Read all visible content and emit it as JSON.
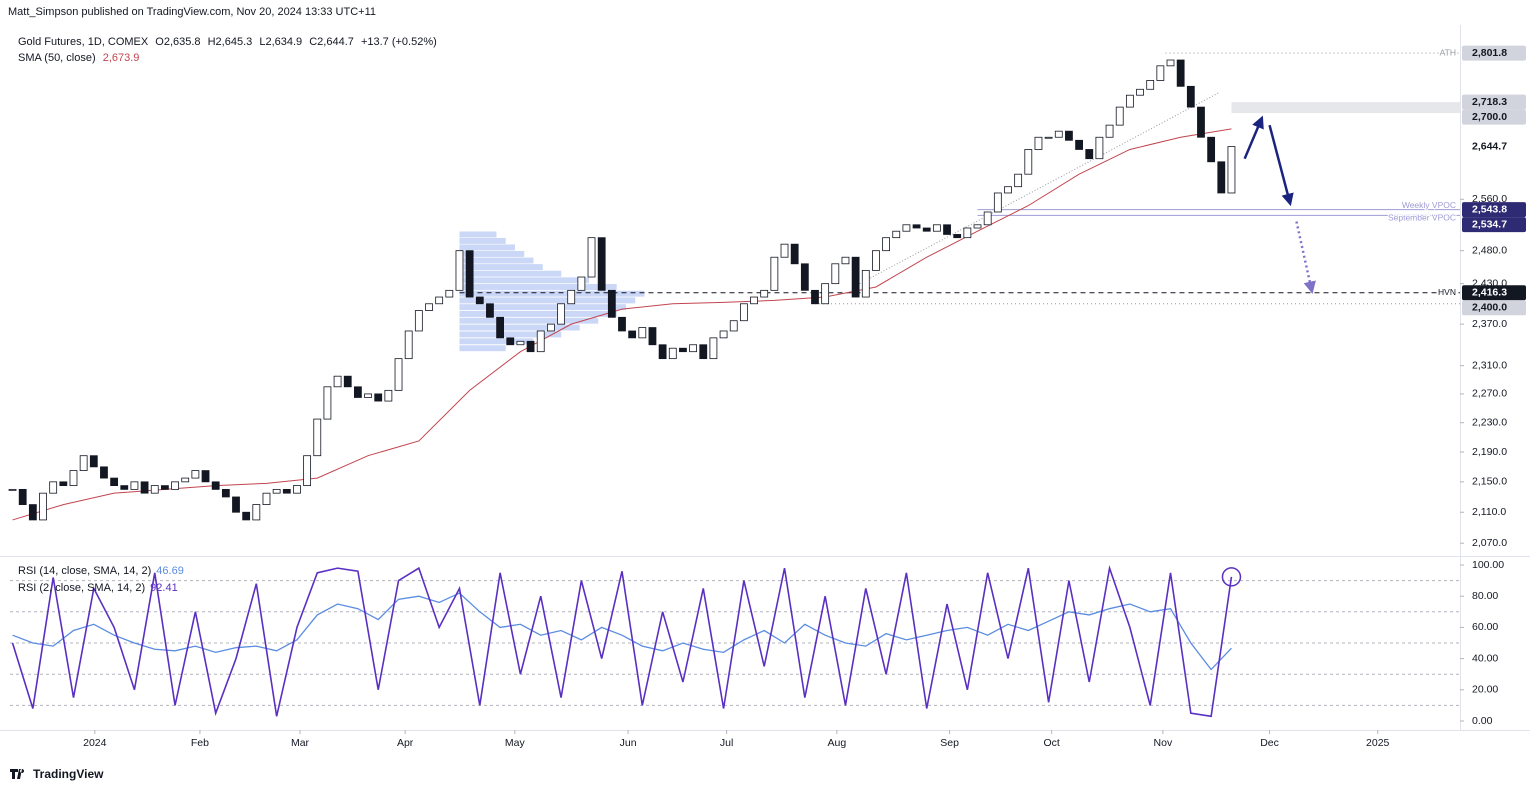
{
  "header": {
    "publisher": "Matt_Simpson published on TradingView.com, Nov 20, 2024 13:33 UTC+11",
    "symbol": "Gold Futures, 1D, COMEX",
    "quote": [
      "O2,635.8",
      "H2,645.3",
      "L2,634.9",
      "C2,644.7",
      "+13.7 (+0.52%)"
    ]
  },
  "footer": {
    "brand": "TradingView"
  },
  "chart_data": [
    {
      "type": "candlestick",
      "log_scale": true,
      "xlim": [
        -0.5,
        285
      ],
      "ylim": [
        2055,
        2851
      ],
      "yticks": [
        {
          "value": 2070,
          "label": "2,070.0"
        },
        {
          "value": 2110,
          "label": "2,110.0"
        },
        {
          "value": 2150,
          "label": "2,150.0"
        },
        {
          "value": 2190,
          "label": "2,190.0"
        },
        {
          "value": 2230,
          "label": "2,230.0"
        },
        {
          "value": 2270,
          "label": "2,270.0"
        },
        {
          "value": 2310,
          "label": "2,310.0"
        },
        {
          "value": 2370,
          "label": "2,370.0"
        },
        {
          "value": 2430,
          "label": "2,430.0"
        },
        {
          "value": 2480,
          "label": "2,480.0"
        },
        {
          "value": 2560,
          "label": "2,560.0"
        }
      ],
      "up_color": "#ffffff",
      "down_color": "#131722",
      "x": [
        0,
        2,
        4,
        6,
        8,
        10,
        12,
        14,
        16,
        18,
        20,
        22,
        24,
        26,
        28,
        30,
        32,
        34,
        36,
        38,
        40,
        42,
        44,
        46,
        48,
        50,
        52,
        54,
        56,
        58,
        60,
        62,
        64,
        66,
        68,
        70,
        72,
        74,
        76,
        78,
        80,
        82,
        84,
        86,
        88,
        90,
        92,
        94,
        96,
        98,
        100,
        102,
        104,
        106,
        108,
        110,
        112,
        114,
        116,
        118,
        120,
        122,
        124,
        126,
        128,
        130,
        132,
        134,
        136,
        138,
        140,
        142,
        144,
        146,
        148,
        150,
        152,
        154,
        156,
        158,
        160,
        162,
        164,
        166,
        168,
        170,
        172,
        174,
        176,
        178,
        180,
        182,
        184,
        186,
        188,
        190,
        192,
        194,
        196,
        198,
        200,
        202,
        204,
        206,
        208,
        210,
        212,
        214,
        216,
        218,
        220,
        222,
        224,
        226,
        228,
        230,
        232,
        234,
        236,
        238,
        240
      ],
      "close": [
        2140,
        2120,
        2100,
        2135,
        2150,
        2145,
        2165,
        2185,
        2170,
        2155,
        2145,
        2140,
        2150,
        2135,
        2145,
        2140,
        2150,
        2155,
        2165,
        2150,
        2140,
        2130,
        2110,
        2100,
        2120,
        2135,
        2140,
        2135,
        2145,
        2185,
        2235,
        2280,
        2295,
        2280,
        2265,
        2270,
        2260,
        2275,
        2320,
        2360,
        2390,
        2400,
        2410,
        2420,
        2480,
        2410,
        2400,
        2380,
        2350,
        2340,
        2345,
        2330,
        2360,
        2370,
        2400,
        2420,
        2440,
        2500,
        2420,
        2380,
        2360,
        2350,
        2365,
        2340,
        2320,
        2335,
        2330,
        2340,
        2320,
        2350,
        2360,
        2375,
        2400,
        2410,
        2420,
        2470,
        2490,
        2460,
        2420,
        2400,
        2430,
        2460,
        2470,
        2410,
        2450,
        2480,
        2500,
        2510,
        2520,
        2515,
        2510,
        2520,
        2505,
        2500,
        2515,
        2520,
        2540,
        2570,
        2580,
        2600,
        2640,
        2660,
        2660,
        2670,
        2655,
        2640,
        2625,
        2660,
        2680,
        2710,
        2730,
        2740,
        2755,
        2780,
        2790,
        2745,
        2710,
        2660,
        2620,
        2570,
        2644.7
      ],
      "sma": {
        "name": "SMA (50, close)",
        "value_label": "2,673.9",
        "color": "#c2454f",
        "x": [
          0,
          10,
          20,
          30,
          40,
          50,
          60,
          70,
          80,
          90,
          100,
          110,
          120,
          130,
          140,
          150,
          160,
          170,
          180,
          190,
          200,
          210,
          220,
          230,
          240
        ],
        "values": [
          2100,
          2120,
          2135,
          2140,
          2145,
          2148,
          2155,
          2185,
          2205,
          2275,
          2330,
          2370,
          2392,
          2400,
          2402,
          2405,
          2410,
          2425,
          2470,
          2510,
          2550,
          2600,
          2640,
          2660,
          2673.9
        ]
      },
      "volume_profile": {
        "color": "#9fb7ef",
        "x_from": 88,
        "prices": [
          2335,
          2345,
          2355,
          2365,
          2375,
          2385,
          2395,
          2405,
          2415,
          2425,
          2435,
          2445,
          2455,
          2465,
          2475,
          2485,
          2495,
          2505
        ],
        "volumes": [
          25,
          40,
          55,
          65,
          75,
          85,
          90,
          95,
          100,
          85,
          70,
          55,
          45,
          40,
          35,
          30,
          25,
          20
        ]
      },
      "zone": {
        "low": 2700,
        "high": 2718.3,
        "x_from": 240,
        "color": "#e6e7ea"
      },
      "levels": [
        {
          "value": 2801.8,
          "label": "ATH",
          "x_from": 227,
          "style": "dotted",
          "color": "#9598a1"
        },
        {
          "value": 2543.8,
          "label": "Weekly VPOC",
          "x_from": 190,
          "style": "solid",
          "color": "#9e9bd6"
        },
        {
          "value": 2534.7,
          "label": "September VPOC",
          "x_from": 190,
          "style": "solid",
          "color": "#9e9bd6"
        },
        {
          "value": 2416.3,
          "label": "HVN",
          "x_from": 88,
          "style": "dashed",
          "color": "#131722"
        },
        {
          "value": 2400,
          "x_from": 158,
          "style": "dotted",
          "color": "#9598a1"
        }
      ],
      "trendline": {
        "x": [
          166.8,
          237.7
        ],
        "y": [
          2430,
          2735
        ],
        "color": "#9598a1"
      },
      "arrows": [
        {
          "x": [
            242.6,
            245.9
          ],
          "y": [
            2625,
            2690
          ],
          "color": "#1a237e",
          "dashed": false
        },
        {
          "x": [
            247.5,
            251.5
          ],
          "y": [
            2680,
            2555
          ],
          "color": "#1a237e",
          "dashed": false
        },
        {
          "x": [
            252.8,
            255.8
          ],
          "y": [
            2525,
            2420
          ],
          "color": "#7e73c9",
          "dashed": true
        }
      ],
      "price_labels": [
        {
          "value": 2801.8,
          "label": "2,801.8",
          "bg": "#d1d4dc",
          "fg": "#131722"
        },
        {
          "value": 2718.3,
          "label": "2,718.3",
          "bg": "#d1d4dc",
          "fg": "#131722"
        },
        {
          "value": 2700,
          "label": "2,700.0",
          "bg": "#d1d4dc",
          "fg": "#131722"
        },
        {
          "value": 2644.7,
          "label": "2,644.7",
          "bg": "#ffffff",
          "fg": "#131722"
        },
        {
          "value": 2543.8,
          "label": "2,543.8",
          "bg": "#2e2a73",
          "fg": "#ffffff"
        },
        {
          "value": 2534.7,
          "label": "2,534.7",
          "bg": "#2e2a73",
          "fg": "#ffffff"
        },
        {
          "value": 2416.3,
          "label": "2,416.3",
          "bg": "#131722",
          "fg": "#ffffff"
        },
        {
          "value": 2400,
          "label": "2,400.0",
          "bg": "#d1d4dc",
          "fg": "#131722"
        }
      ]
    },
    {
      "type": "line",
      "xlim": [
        -0.5,
        285
      ],
      "ylim": [
        -4.5,
        104.5
      ],
      "yticks": [
        {
          "value": 100,
          "label": "100.00"
        },
        {
          "value": 80,
          "label": "80.00"
        },
        {
          "value": 60,
          "label": "60.00"
        },
        {
          "value": 40,
          "label": "40.00"
        },
        {
          "value": 20,
          "label": "20.00"
        },
        {
          "value": 0,
          "label": "0.00"
        }
      ],
      "levels": [
        90,
        70,
        50,
        30,
        10
      ],
      "xticks": [
        {
          "value": 16.2,
          "label": "2024"
        },
        {
          "value": 36.9,
          "label": "Feb"
        },
        {
          "value": 56.6,
          "label": "Mar"
        },
        {
          "value": 77.3,
          "label": "Apr"
        },
        {
          "value": 98.9,
          "label": "May"
        },
        {
          "value": 121.2,
          "label": "Jun"
        },
        {
          "value": 140.6,
          "label": "Jul"
        },
        {
          "value": 162.3,
          "label": "Aug"
        },
        {
          "value": 184.5,
          "label": "Sep"
        },
        {
          "value": 204.6,
          "label": "Oct"
        },
        {
          "value": 226.5,
          "label": "Nov"
        },
        {
          "value": 247.5,
          "label": "Dec"
        },
        {
          "value": 268.8,
          "label": "2025"
        }
      ],
      "x": [
        0,
        4,
        8,
        12,
        16,
        20,
        24,
        28,
        32,
        36,
        40,
        44,
        48,
        52,
        56,
        60,
        64,
        68,
        72,
        76,
        80,
        84,
        88,
        92,
        96,
        100,
        104,
        108,
        112,
        116,
        120,
        124,
        128,
        132,
        136,
        140,
        144,
        148,
        152,
        156,
        160,
        164,
        168,
        172,
        176,
        180,
        184,
        188,
        192,
        196,
        200,
        204,
        208,
        212,
        216,
        220,
        224,
        228,
        232,
        236,
        240
      ],
      "series": [
        {
          "name": "RSI (14, close, SMA, 14, 2)",
          "value_label": "46.69",
          "color": "#5b8ce0",
          "values": [
            55,
            50,
            48,
            58,
            62,
            55,
            50,
            46,
            45,
            48,
            44,
            47,
            48,
            45,
            52,
            68,
            75,
            72,
            65,
            78,
            80,
            76,
            82,
            70,
            60,
            62,
            55,
            58,
            52,
            60,
            55,
            48,
            45,
            50,
            46,
            44,
            52,
            58,
            50,
            62,
            55,
            50,
            48,
            56,
            52,
            55,
            58,
            60,
            55,
            62,
            58,
            64,
            70,
            68,
            72,
            75,
            70,
            72,
            50,
            33,
            46.69
          ]
        },
        {
          "name": "RSI (2, close, SMA, 14, 2)",
          "value_label": "92.41",
          "color": "#5a2fc2",
          "values": [
            50,
            8,
            92,
            15,
            85,
            60,
            20,
            95,
            10,
            70,
            5,
            40,
            88,
            3,
            60,
            95,
            98,
            96,
            20,
            90,
            98,
            60,
            85,
            10,
            95,
            30,
            80,
            15,
            90,
            40,
            96,
            10,
            70,
            25,
            85,
            8,
            90,
            35,
            98,
            15,
            80,
            10,
            85,
            30,
            95,
            8,
            75,
            20,
            95,
            40,
            98,
            12,
            90,
            25,
            98,
            60,
            10,
            95,
            5,
            3,
            92.41
          ]
        }
      ]
    }
  ]
}
